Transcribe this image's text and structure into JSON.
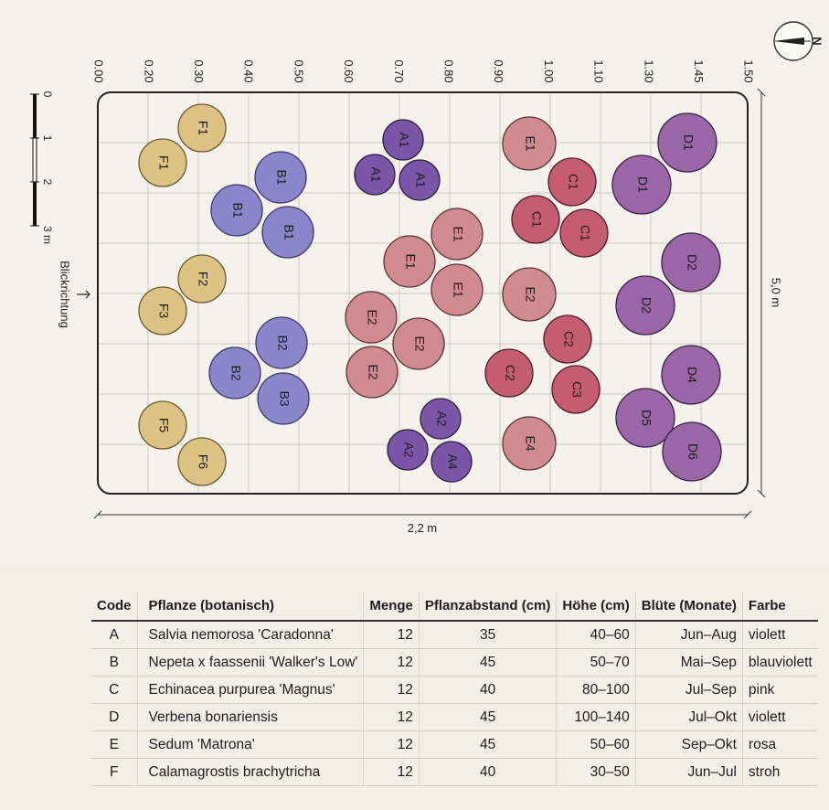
{
  "plan": {
    "x_ticks": [
      "0.00",
      "0.20",
      "0.30",
      "0.40",
      "0.50",
      "0.60",
      "0.70",
      "0.80",
      "0.90",
      "1.00",
      "1.10",
      "1.30",
      "1.45",
      "1.50"
    ],
    "width_label": "2,2 m",
    "height_label": "5,0 m",
    "view_label": "Blickrichtung",
    "north_label": "N",
    "scale_bar": {
      "labels": [
        "0",
        "1",
        "2",
        "3 m"
      ]
    },
    "colors": {
      "A": "#7a55a8",
      "B": "#8a86cc",
      "C": "#c65c72",
      "D": "#9a66a8",
      "E": "#d08a90",
      "F": "#dcc283"
    },
    "plants": [
      {
        "code": "A",
        "label": "A1"
      },
      {
        "code": "A",
        "label": "A1"
      },
      {
        "code": "A",
        "label": "A1"
      },
      {
        "code": "A",
        "label": "A2"
      },
      {
        "code": "A",
        "label": "A2"
      },
      {
        "code": "A",
        "label": "A4"
      },
      {
        "code": "B",
        "label": "B1"
      },
      {
        "code": "B",
        "label": "B1"
      },
      {
        "code": "B",
        "label": "B1"
      },
      {
        "code": "B",
        "label": "B2"
      },
      {
        "code": "B",
        "label": "B2"
      },
      {
        "code": "B",
        "label": "B3"
      },
      {
        "code": "C",
        "label": "C1"
      },
      {
        "code": "C",
        "label": "C1"
      },
      {
        "code": "C",
        "label": "C1"
      },
      {
        "code": "C",
        "label": "C2"
      },
      {
        "code": "C",
        "label": "C2"
      },
      {
        "code": "C",
        "label": "C3"
      },
      {
        "code": "D",
        "label": "D1"
      },
      {
        "code": "D",
        "label": "D1"
      },
      {
        "code": "D",
        "label": "D2"
      },
      {
        "code": "D",
        "label": "D2"
      },
      {
        "code": "D",
        "label": "D4"
      },
      {
        "code": "D",
        "label": "D5"
      },
      {
        "code": "D",
        "label": "D6"
      },
      {
        "code": "E",
        "label": "E1"
      },
      {
        "code": "E",
        "label": "E1"
      },
      {
        "code": "E",
        "label": "E1"
      },
      {
        "code": "E",
        "label": "E1"
      },
      {
        "code": "E",
        "label": "E2"
      },
      {
        "code": "E",
        "label": "E2"
      },
      {
        "code": "E",
        "label": "E2"
      },
      {
        "code": "E",
        "label": "E2"
      },
      {
        "code": "E",
        "label": "E4"
      },
      {
        "code": "F",
        "label": "F1"
      },
      {
        "code": "F",
        "label": "F1"
      },
      {
        "code": "F",
        "label": "F2"
      },
      {
        "code": "F",
        "label": "F3"
      },
      {
        "code": "F",
        "label": "F5"
      },
      {
        "code": "F",
        "label": "F6"
      }
    ]
  },
  "table": {
    "headers": {
      "code": "Code",
      "plant": "Pflanze (botanisch)",
      "qty": "Menge",
      "spacing": "Pflanzabstand (cm)",
      "height": "Höhe (cm)",
      "bloom": "Blüte (Monate)",
      "color": "Farbe"
    },
    "rows": [
      {
        "code": "A",
        "plant": "Salvia nemorosa 'Caradonna'",
        "qty": "12",
        "spacing": "35",
        "height": "40–60",
        "bloom": "Jun–Aug",
        "color": "violett"
      },
      {
        "code": "B",
        "plant": "Nepeta x faassenii 'Walker's Low'",
        "qty": "12",
        "spacing": "45",
        "height": "50–70",
        "bloom": "Mai–Sep",
        "color": "blauviolett"
      },
      {
        "code": "C",
        "plant": "Echinacea purpurea 'Magnus'",
        "qty": "12",
        "spacing": "40",
        "height": "80–100",
        "bloom": "Jul–Sep",
        "color": "pink"
      },
      {
        "code": "D",
        "plant": "Verbena bonariensis",
        "qty": "12",
        "spacing": "45",
        "height": "100–140",
        "bloom": "Jul–Okt",
        "color": "violett"
      },
      {
        "code": "E",
        "plant": "Sedum 'Matrona'",
        "qty": "12",
        "spacing": "45",
        "height": "50–60",
        "bloom": "Sep–Okt",
        "color": "rosa"
      },
      {
        "code": "F",
        "plant": "Calamagrostis brachytricha",
        "qty": "12",
        "spacing": "40",
        "height": "30–50",
        "bloom": "Jun–Jul",
        "color": "stroh"
      }
    ]
  }
}
